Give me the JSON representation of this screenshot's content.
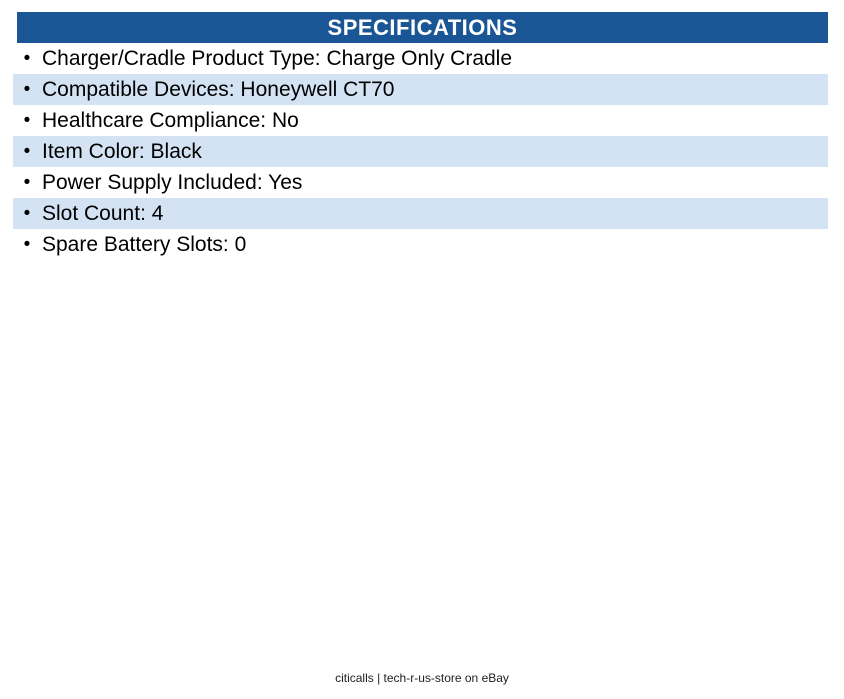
{
  "colors": {
    "header_bg": "#1A5596",
    "header_text": "#FFFFFF",
    "row_alt_bg": "#D3E3F3",
    "text_color": "#000000",
    "footer_color": "#1E1E1E"
  },
  "header": {
    "title": "SPECIFICATIONS"
  },
  "list": {
    "bullet": "•",
    "separator": ": ",
    "rows": [
      {
        "label": "Charger/Cradle Product Type",
        "value": "Charge Only Cradle"
      },
      {
        "label": "Compatible Devices",
        "value": "Honeywell CT70"
      },
      {
        "label": "Healthcare Compliance",
        "value": "No"
      },
      {
        "label": "Item Color",
        "value": "Black"
      },
      {
        "label": "Power Supply Included",
        "value": "Yes"
      },
      {
        "label": "Slot Count",
        "value": "4"
      },
      {
        "label": "Spare Battery Slots",
        "value": "0"
      }
    ]
  },
  "footer": {
    "text": "citicalls | tech-r-us-store on eBay"
  }
}
